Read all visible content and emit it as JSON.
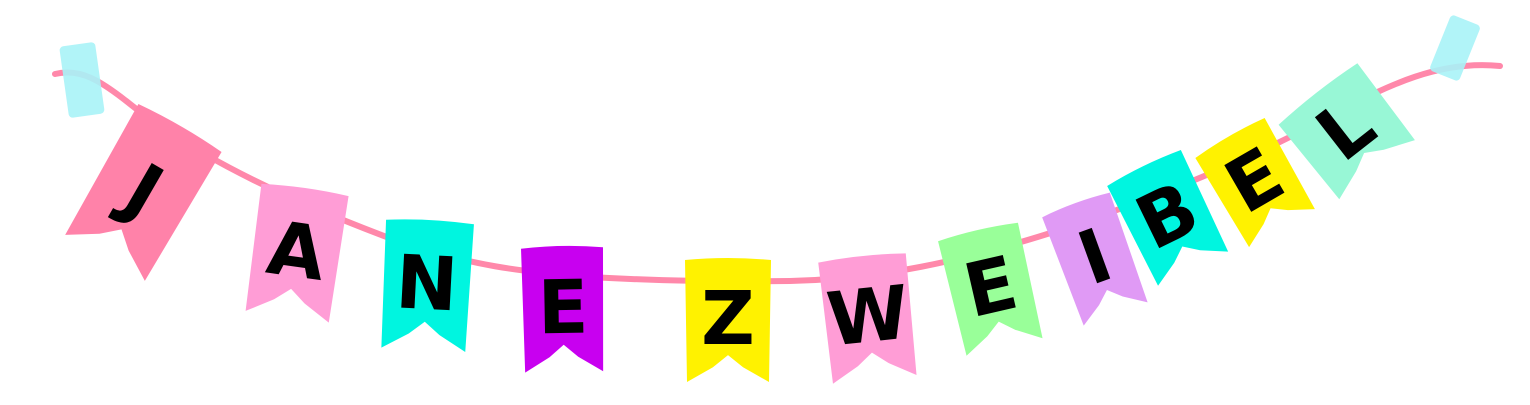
{
  "banner": {
    "string_color": "#ff88aa",
    "tape_color": "#a9f3f7",
    "flags": [
      {
        "letter": "J",
        "color": "#ff82a9",
        "text_color": "#111111"
      },
      {
        "letter": "A",
        "color": "#ff9dd6",
        "text_color": "#111111"
      },
      {
        "letter": "N",
        "color": "#00f5e0",
        "text_color": "#111111"
      },
      {
        "letter": "E",
        "color": "#c800f0",
        "text_color": "#111111"
      },
      {
        "letter": "Z",
        "color": "#fff200",
        "text_color": "#111111"
      },
      {
        "letter": "W",
        "color": "#ff9dd6",
        "text_color": "#111111"
      },
      {
        "letter": "E",
        "color": "#99ff99",
        "text_color": "#111111"
      },
      {
        "letter": "I",
        "color": "#e09af5",
        "text_color": "#111111"
      },
      {
        "letter": "B",
        "color": "#00f5e0",
        "text_color": "#111111"
      },
      {
        "letter": "E",
        "color": "#fff200",
        "text_color": "#111111"
      },
      {
        "letter": "L",
        "color": "#98f7d6",
        "text_color": "#111111"
      }
    ]
  }
}
